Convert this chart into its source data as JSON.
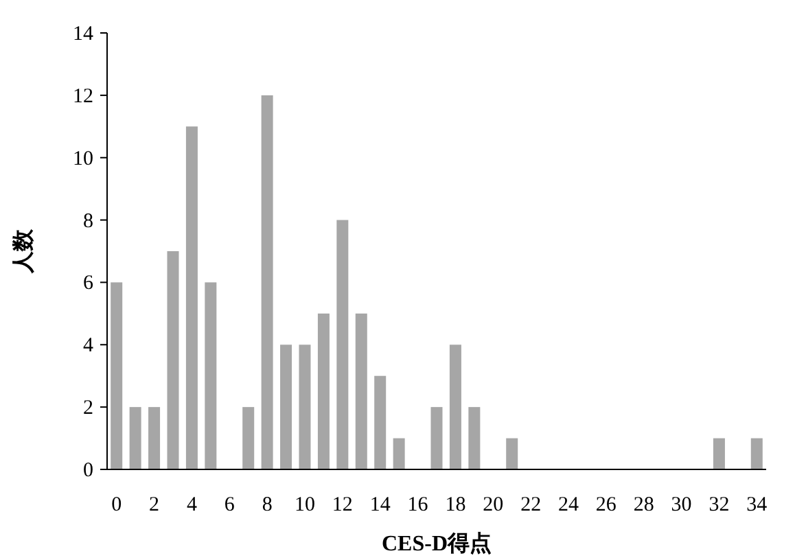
{
  "chart_data": {
    "type": "bar",
    "xlabel": "CES-D得点",
    "ylabel": "人数",
    "categories": [
      "0",
      null,
      "2",
      null,
      "4",
      null,
      "6",
      null,
      "8",
      null,
      "10",
      null,
      "12",
      null,
      "14",
      null,
      "16",
      null,
      "18",
      null,
      "20",
      null,
      "22",
      null,
      "24",
      null,
      "26",
      null,
      "28",
      null,
      "30",
      null,
      "32",
      null,
      "34"
    ],
    "values": [
      6,
      2,
      2,
      7,
      11,
      6,
      0,
      2,
      12,
      4,
      4,
      5,
      8,
      5,
      3,
      1,
      0,
      2,
      4,
      2,
      0,
      1,
      0,
      0,
      0,
      0,
      0,
      0,
      0,
      0,
      0,
      0,
      1,
      0,
      1
    ],
    "color": "#a6a6a6",
    "ylim": [
      0,
      14
    ],
    "yticks": [
      0,
      2,
      4,
      6,
      8,
      10,
      12,
      14
    ],
    "grid": false
  }
}
